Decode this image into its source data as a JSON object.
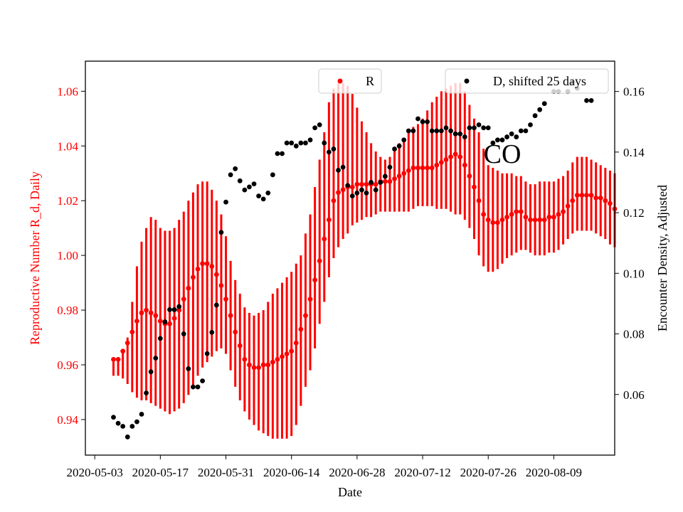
{
  "chart_data": {
    "type": "scatter",
    "annotation": "CO",
    "xlabel": "Date",
    "ylabel_left": "Reproductive Number R_d, Daily",
    "ylabel_right": "Encounter Density, Adjusted",
    "xlim": [
      "2020-05-01",
      "2020-08-22"
    ],
    "ylim_left": [
      0.927,
      1.071
    ],
    "ylim_right": [
      0.04,
      0.17
    ],
    "x_ticks": [
      "2020-05-03",
      "2020-05-17",
      "2020-05-31",
      "2020-06-14",
      "2020-06-28",
      "2020-07-12",
      "2020-07-26",
      "2020-08-09"
    ],
    "y_ticks_left": [
      "0.94",
      "0.96",
      "0.98",
      "1.00",
      "1.02",
      "1.04",
      "1.06"
    ],
    "y_ticks_right": [
      "0.06",
      "0.08",
      "0.10",
      "0.12",
      "0.14",
      "0.16"
    ],
    "left_color": "#ff0000",
    "right_color": "#000000",
    "grid": false,
    "legend_r": {
      "label": "R",
      "placement": "upper-center"
    },
    "legend_d": {
      "label": "D, shifted 25 days",
      "placement": "upper-right"
    },
    "series": [
      {
        "name": "R",
        "axis": "left",
        "color": "#ff0000",
        "error_bars": true,
        "start_date": "2020-05-07",
        "values": [
          0.962,
          0.962,
          0.965,
          0.968,
          0.972,
          0.976,
          0.979,
          0.98,
          0.979,
          0.978,
          0.976,
          0.975,
          0.975,
          0.977,
          0.98,
          0.984,
          0.988,
          0.992,
          0.995,
          0.997,
          0.997,
          0.996,
          0.993,
          0.989,
          0.984,
          0.978,
          0.972,
          0.967,
          0.962,
          0.96,
          0.959,
          0.959,
          0.96,
          0.96,
          0.961,
          0.962,
          0.963,
          0.964,
          0.965,
          0.968,
          0.973,
          0.978,
          0.984,
          0.991,
          0.998,
          1.006,
          1.013,
          1.02,
          1.023,
          1.024,
          1.025,
          1.025,
          1.026,
          1.026,
          1.026,
          1.026,
          1.026,
          1.027,
          1.027,
          1.027,
          1.028,
          1.029,
          1.03,
          1.031,
          1.032,
          1.032,
          1.032,
          1.032,
          1.032,
          1.033,
          1.034,
          1.035,
          1.036,
          1.037,
          1.036,
          1.033,
          1.029,
          1.025,
          1.02,
          1.015,
          1.013,
          1.012,
          1.012,
          1.013,
          1.014,
          1.015,
          1.016,
          1.016,
          1.014,
          1.013,
          1.013,
          1.013,
          1.013,
          1.014,
          1.014,
          1.015,
          1.016,
          1.018,
          1.02,
          1.022,
          1.022,
          1.022,
          1.022,
          1.021,
          1.021,
          1.02,
          1.019,
          1.017
        ],
        "lower": [
          0.956,
          0.956,
          0.955,
          0.953,
          0.95,
          0.948,
          0.947,
          0.947,
          0.946,
          0.945,
          0.944,
          0.943,
          0.942,
          0.943,
          0.944,
          0.946,
          0.949,
          0.952,
          0.956,
          0.959,
          0.961,
          0.963,
          0.965,
          0.966,
          0.964,
          0.958,
          0.952,
          0.947,
          0.943,
          0.94,
          0.938,
          0.936,
          0.935,
          0.934,
          0.933,
          0.933,
          0.933,
          0.933,
          0.934,
          0.938,
          0.945,
          0.952,
          0.958,
          0.966,
          0.975,
          0.983,
          0.992,
          0.999,
          1.003,
          1.006,
          1.008,
          1.011,
          1.012,
          1.013,
          1.014,
          1.014,
          1.015,
          1.016,
          1.016,
          1.016,
          1.016,
          1.016,
          1.016,
          1.016,
          1.017,
          1.018,
          1.018,
          1.018,
          1.018,
          1.017,
          1.017,
          1.017,
          1.016,
          1.015,
          1.015,
          1.013,
          1.01,
          1.006,
          1.0,
          0.996,
          0.994,
          0.994,
          0.995,
          0.997,
          0.999,
          1.0,
          1.001,
          1.002,
          1.002,
          1.001,
          1.0,
          1.0,
          1.0,
          1.001,
          1.001,
          1.002,
          1.004,
          1.006,
          1.008,
          1.009,
          1.009,
          1.009,
          1.009,
          1.008,
          1.007,
          1.006,
          1.004,
          1.003
        ],
        "upper": [
          0.962,
          0.962,
          0.965,
          0.97,
          0.983,
          0.996,
          1.005,
          1.01,
          1.014,
          1.013,
          1.01,
          1.009,
          1.009,
          1.01,
          1.013,
          1.016,
          1.02,
          1.023,
          1.026,
          1.027,
          1.027,
          1.024,
          1.02,
          1.015,
          1.007,
          0.998,
          0.991,
          0.986,
          0.981,
          0.979,
          0.978,
          0.979,
          0.98,
          0.983,
          0.986,
          0.988,
          0.99,
          0.992,
          0.994,
          0.997,
          1.0,
          1.008,
          1.015,
          1.025,
          1.035,
          1.045,
          1.056,
          1.061,
          1.063,
          1.063,
          1.062,
          1.059,
          1.054,
          1.049,
          1.045,
          1.041,
          1.038,
          1.036,
          1.035,
          1.036,
          1.038,
          1.041,
          1.043,
          1.045,
          1.047,
          1.048,
          1.05,
          1.053,
          1.056,
          1.058,
          1.06,
          1.061,
          1.062,
          1.063,
          1.063,
          1.06,
          1.055,
          1.05,
          1.045,
          1.039,
          1.033,
          1.032,
          1.031,
          1.03,
          1.03,
          1.03,
          1.029,
          1.029,
          1.027,
          1.026,
          1.026,
          1.027,
          1.027,
          1.027,
          1.027,
          1.028,
          1.029,
          1.031,
          1.034,
          1.036,
          1.036,
          1.036,
          1.035,
          1.034,
          1.033,
          1.032,
          1.031,
          1.03
        ]
      },
      {
        "name": "D, shifted 25 days",
        "axis": "right",
        "color": "#000000",
        "x": [
          "2020-05-07",
          "2020-05-08",
          "2020-05-09",
          "2020-05-10",
          "2020-05-11",
          "2020-05-12",
          "2020-05-13",
          "2020-05-14",
          "2020-05-15",
          "2020-05-16",
          "2020-05-17",
          "2020-05-18",
          "2020-05-19",
          "2020-05-20",
          "2020-05-21",
          "2020-05-22",
          "2020-05-23",
          "2020-05-24",
          "2020-05-25",
          "2020-05-26",
          "2020-05-27",
          "2020-05-28",
          "2020-05-29",
          "2020-05-30",
          "2020-05-31",
          "2020-06-01",
          "2020-06-02",
          "2020-06-03",
          "2020-06-04",
          "2020-06-05",
          "2020-06-06",
          "2020-06-07",
          "2020-06-08",
          "2020-06-09",
          "2020-06-10",
          "2020-06-11",
          "2020-06-12",
          "2020-06-13",
          "2020-06-14",
          "2020-06-15",
          "2020-06-16",
          "2020-06-17",
          "2020-06-18",
          "2020-06-19",
          "2020-06-20",
          "2020-06-21",
          "2020-06-22",
          "2020-06-23",
          "2020-06-24",
          "2020-06-25",
          "2020-06-26",
          "2020-06-27",
          "2020-06-28",
          "2020-06-29",
          "2020-06-30",
          "2020-07-01",
          "2020-07-02",
          "2020-07-03",
          "2020-07-04",
          "2020-07-05",
          "2020-07-06",
          "2020-07-07",
          "2020-07-08",
          "2020-07-09",
          "2020-07-10",
          "2020-07-11",
          "2020-07-12",
          "2020-07-13",
          "2020-07-14",
          "2020-07-15",
          "2020-07-16",
          "2020-07-17",
          "2020-07-18",
          "2020-07-19",
          "2020-07-20",
          "2020-07-21",
          "2020-07-22",
          "2020-07-23",
          "2020-07-24",
          "2020-07-25",
          "2020-07-26",
          "2020-07-27",
          "2020-07-28",
          "2020-07-29",
          "2020-07-30",
          "2020-07-31",
          "2020-08-01",
          "2020-08-02",
          "2020-08-03",
          "2020-08-04",
          "2020-08-05",
          "2020-08-06",
          "2020-08-07",
          "2020-08-09",
          "2020-08-10",
          "2020-08-12",
          "2020-08-13",
          "2020-08-14",
          "2020-08-16",
          "2020-08-17"
        ],
        "values": [
          0.0525,
          0.0505,
          0.0495,
          0.046,
          0.0495,
          0.051,
          0.0535,
          0.0605,
          0.0675,
          0.072,
          0.0785,
          0.084,
          0.088,
          0.088,
          0.089,
          0.08,
          0.0685,
          0.0625,
          0.0625,
          0.0645,
          0.0735,
          0.0805,
          0.0895,
          0.1135,
          0.1235,
          0.1325,
          0.1345,
          0.1305,
          0.1275,
          0.1285,
          0.1295,
          0.1255,
          0.1245,
          0.1265,
          0.1325,
          0.1395,
          0.1395,
          0.143,
          0.143,
          0.142,
          0.143,
          0.143,
          0.144,
          0.148,
          0.149,
          0.143,
          0.14,
          0.141,
          0.134,
          0.135,
          0.129,
          0.1255,
          0.1265,
          0.1275,
          0.1265,
          0.13,
          0.1275,
          0.13,
          0.132,
          0.135,
          0.141,
          0.142,
          0.144,
          0.147,
          0.147,
          0.151,
          0.15,
          0.15,
          0.147,
          0.147,
          0.147,
          0.148,
          0.147,
          0.146,
          0.146,
          0.145,
          0.148,
          0.148,
          0.149,
          0.148,
          0.148,
          0.143,
          0.144,
          0.144,
          0.145,
          0.146,
          0.145,
          0.147,
          0.147,
          0.149,
          0.152,
          0.154,
          0.156,
          0.16,
          0.16,
          0.16,
          0.163,
          0.161,
          0.157,
          0.157
        ]
      }
    ]
  }
}
